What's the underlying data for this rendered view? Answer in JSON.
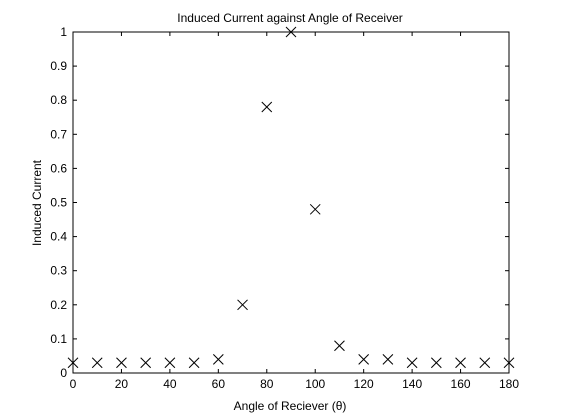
{
  "chart_data": {
    "type": "scatter",
    "title": "Induced Current against Angle of Receiver",
    "xlabel": "Angle of Reciever (θ)",
    "ylabel": "Induced Current",
    "xlim": [
      0,
      180
    ],
    "ylim": [
      0,
      1
    ],
    "x_ticks": [
      0,
      20,
      40,
      60,
      80,
      100,
      120,
      140,
      160,
      180
    ],
    "y_ticks": [
      0,
      0.1,
      0.2,
      0.3,
      0.4,
      0.5,
      0.6,
      0.7,
      0.8,
      0.9,
      1
    ],
    "x_tick_labels": [
      "0",
      "20",
      "40",
      "60",
      "80",
      "100",
      "120",
      "140",
      "160",
      "180"
    ],
    "y_tick_labels": [
      "0",
      "0.1",
      "0.2",
      "0.3",
      "0.4",
      "0.5",
      "0.6",
      "0.7",
      "0.8",
      "0.9",
      "1"
    ],
    "grid": false,
    "marker": "x",
    "marker_color": "#000000",
    "series": [
      {
        "x": [
          0,
          10,
          20,
          30,
          40,
          50,
          60,
          70,
          80,
          90,
          100,
          110,
          120,
          130,
          140,
          150,
          160,
          170,
          180
        ],
        "y": [
          0.03,
          0.03,
          0.03,
          0.03,
          0.03,
          0.03,
          0.04,
          0.2,
          0.78,
          1.0,
          0.48,
          0.08,
          0.04,
          0.04,
          0.03,
          0.03,
          0.03,
          0.03,
          0.03
        ]
      }
    ]
  }
}
